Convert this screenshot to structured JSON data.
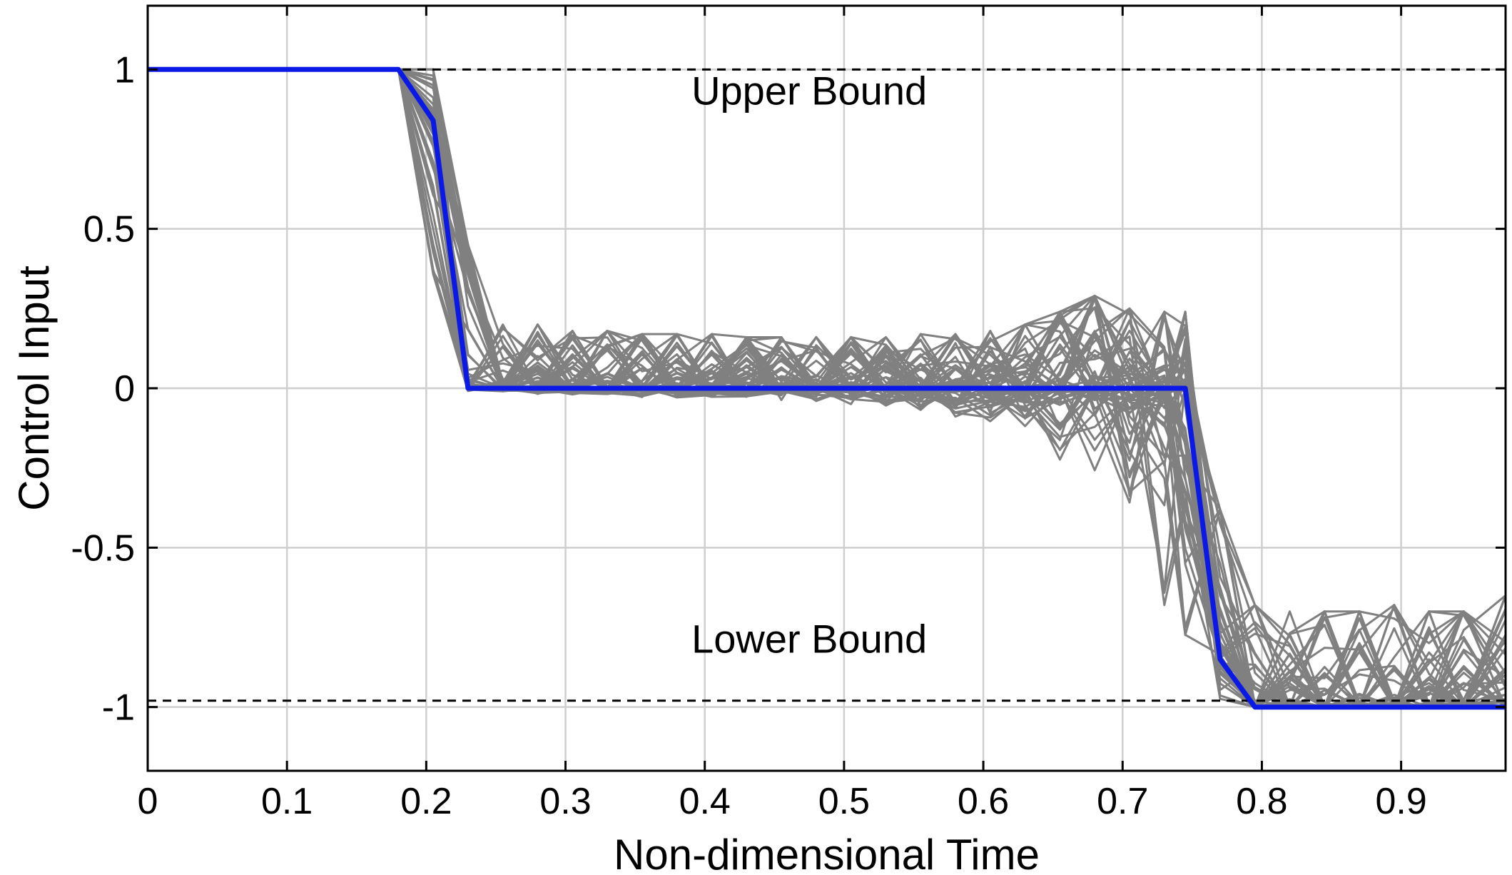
{
  "chart_data": {
    "type": "line",
    "title": "",
    "xlabel": "Non-dimensional Time",
    "ylabel": "Control Input",
    "xlim": [
      0,
      0.975
    ],
    "ylim": [
      -1.2,
      1.2
    ],
    "grid": true,
    "xticks": [
      0,
      0.1,
      0.2,
      0.3,
      0.4,
      0.5,
      0.6,
      0.7,
      0.8,
      0.9
    ],
    "xtick_labels": [
      "0",
      "0.1",
      "0.2",
      "0.3",
      "0.4",
      "0.5",
      "0.6",
      "0.7",
      "0.8",
      "0.9"
    ],
    "yticks": [
      1,
      0.5,
      0,
      -0.5,
      -1
    ],
    "ytick_labels": [
      "1",
      "0.5",
      "0",
      "-0.5",
      "-1"
    ],
    "bounds": [
      {
        "label": "Upper Bound",
        "value": 1.0,
        "label_x": 0.475,
        "label_y": 0.89
      },
      {
        "label": "Lower Bound",
        "value": -0.98,
        "label_x": 0.475,
        "label_y": -0.83
      }
    ],
    "ensemble": {
      "color": "#808080",
      "count": 60,
      "x": [
        0,
        0.18,
        0.205,
        0.23,
        0.255,
        0.28,
        0.305,
        0.33,
        0.355,
        0.38,
        0.405,
        0.43,
        0.455,
        0.48,
        0.505,
        0.53,
        0.555,
        0.58,
        0.605,
        0.63,
        0.655,
        0.68,
        0.705,
        0.73,
        0.745,
        0.77,
        0.795,
        0.82,
        0.845,
        0.87,
        0.895,
        0.92,
        0.945,
        0.975
      ],
      "center": [
        1,
        1,
        0.84,
        0,
        0,
        0,
        0,
        0,
        0,
        0,
        0,
        0,
        0,
        0,
        0,
        0,
        0,
        0,
        0,
        0,
        0,
        0,
        0,
        0,
        0,
        -0.85,
        -1,
        -1,
        -1,
        -1,
        -1,
        -1,
        -1,
        -1
      ],
      "upper_envelope": [
        1,
        1,
        1,
        0.45,
        0.2,
        0.2,
        0.18,
        0.18,
        0.17,
        0.17,
        0.17,
        0.16,
        0.16,
        0.16,
        0.16,
        0.16,
        0.17,
        0.17,
        0.18,
        0.2,
        0.24,
        0.29,
        0.25,
        0.24,
        0.24,
        -0.38,
        -0.68,
        -0.7,
        -0.7,
        -0.7,
        -0.68,
        -0.7,
        -0.7,
        -0.65
      ],
      "lower_envelope": [
        1,
        1,
        0.3,
        -0.01,
        -0.01,
        -0.02,
        -0.02,
        -0.02,
        -0.03,
        -0.03,
        -0.03,
        -0.03,
        -0.04,
        -0.04,
        -0.05,
        -0.06,
        -0.07,
        -0.09,
        -0.12,
        -0.16,
        -0.24,
        -0.3,
        -0.38,
        -0.7,
        -0.78,
        -1,
        -1,
        -1,
        -1,
        -1,
        -1,
        -1,
        -1,
        -1
      ]
    },
    "series": [
      {
        "color": "#0a19e6",
        "x": [
          0,
          0.18,
          0.205,
          0.23,
          0.745,
          0.77,
          0.795,
          0.975
        ],
        "y": [
          1,
          1,
          0.84,
          0,
          0,
          -0.85,
          -1,
          -1
        ]
      }
    ]
  }
}
